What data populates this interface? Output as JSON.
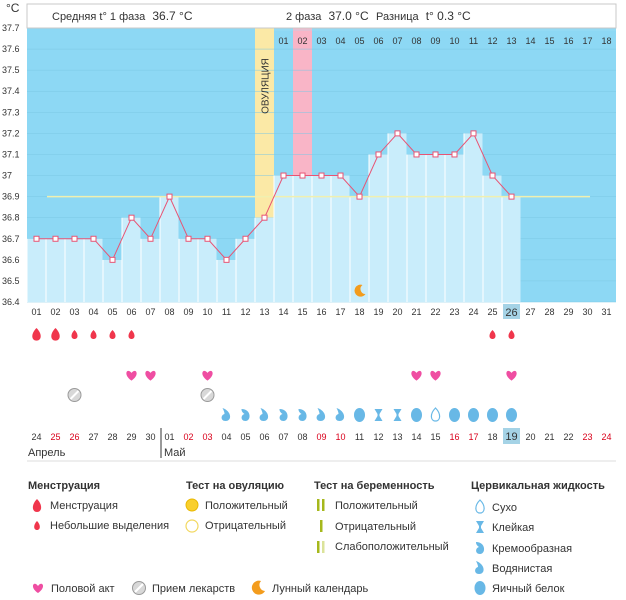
{
  "header": {
    "unit": "°C",
    "phase1_label": "Средняя t° 1 фаза",
    "phase1_value": "36.7 °C",
    "phase2_label": "2 фаза",
    "phase2_value": "37.0 °C",
    "diff_label": "Разница",
    "diff_value": "t° 0.3 °C",
    "ovulation_label": "ОВУЛЯЦИЯ"
  },
  "chart_data": {
    "type": "bar",
    "ylim": [
      36.4,
      37.7
    ],
    "y_ticks": [
      "36.4",
      "36.5",
      "36.6",
      "36.7",
      "36.8",
      "36.9",
      "37",
      "37.1",
      "37.2",
      "37.3",
      "37.4",
      "37.5",
      "37.6",
      "37.7"
    ],
    "coverline": 36.9,
    "ovulation_day": 13,
    "predicted_period_day": 15,
    "today_day": 26,
    "cycle_days": [
      1,
      2,
      3,
      4,
      5,
      6,
      7,
      8,
      9,
      10,
      11,
      12,
      13,
      14,
      15,
      16,
      17,
      18,
      19,
      20,
      21,
      22,
      23,
      24,
      25,
      26,
      27,
      28,
      29,
      30,
      31
    ],
    "values": [
      36.7,
      36.7,
      36.7,
      36.7,
      36.6,
      36.8,
      36.7,
      36.9,
      36.7,
      36.7,
      36.6,
      36.7,
      36.8,
      37.0,
      37.0,
      37.0,
      37.0,
      36.9,
      37.1,
      37.2,
      37.1,
      37.1,
      37.1,
      37.2,
      37.0,
      36.9
    ],
    "top_day_labels": [
      "01",
      "02",
      "03",
      "04",
      "05",
      "06",
      "07",
      "08",
      "09",
      "10",
      "11",
      "12",
      "13",
      "14",
      "15",
      "16",
      "17",
      "18"
    ],
    "bottom_day_labels": [
      "01",
      "02",
      "03",
      "04",
      "05",
      "06",
      "07",
      "08",
      "09",
      "10",
      "11",
      "12",
      "13",
      "14",
      "15",
      "16",
      "17",
      "18",
      "19",
      "20",
      "21",
      "22",
      "23",
      "24",
      "25",
      "26",
      "27",
      "28",
      "29",
      "30",
      "31"
    ],
    "date_labels": [
      "24",
      "25",
      "26",
      "27",
      "28",
      "29",
      "30",
      "01",
      "02",
      "03",
      "04",
      "05",
      "06",
      "07",
      "08",
      "09",
      "10",
      "11",
      "12",
      "13",
      "14",
      "15",
      "16",
      "17",
      "18",
      "19",
      "20",
      "21",
      "22",
      "23",
      "24"
    ],
    "red_dates": [
      "25",
      "26",
      "02",
      "03",
      "09",
      "10",
      "16",
      "17",
      "23",
      "24"
    ],
    "months": [
      "Апрель",
      "Май"
    ],
    "menstruation_heavy_days": [
      1,
      2
    ],
    "menstruation_light_days": [
      3,
      4,
      5,
      6,
      25,
      26
    ],
    "intercourse_days": [
      6,
      7,
      10,
      21,
      22,
      26
    ],
    "medication_days": [
      3,
      10
    ],
    "moon_day": 18,
    "cervical_fluid": [
      {
        "day": 11,
        "kind": "watery"
      },
      {
        "day": 12,
        "kind": "creamy"
      },
      {
        "day": 13,
        "kind": "watery"
      },
      {
        "day": 14,
        "kind": "creamy"
      },
      {
        "day": 15,
        "kind": "creamy"
      },
      {
        "day": 16,
        "kind": "watery"
      },
      {
        "day": 17,
        "kind": "watery"
      },
      {
        "day": 18,
        "kind": "eggwhite"
      },
      {
        "day": 19,
        "kind": "sticky"
      },
      {
        "day": 20,
        "kind": "sticky"
      },
      {
        "day": 21,
        "kind": "eggwhite"
      },
      {
        "day": 22,
        "kind": "dry"
      },
      {
        "day": 23,
        "kind": "eggwhite"
      },
      {
        "day": 24,
        "kind": "eggwhite"
      },
      {
        "day": 25,
        "kind": "eggwhite"
      },
      {
        "day": 26,
        "kind": "eggwhite"
      }
    ]
  },
  "colors": {
    "sky": "#8dd8f4",
    "bar": "#c9edfb",
    "bar_dark": "#a5cfe2",
    "ovulation": "#fbe9a6",
    "period": "#f9b5c7",
    "today": "#a5d3e6",
    "line": "#e85474",
    "coverline": "#f0f0b0",
    "drop": "#f0364c",
    "heart": "#ef4ea2",
    "fluid": "#68b8e6",
    "moon": "#f39c1d",
    "pill": "#9a9a9a"
  },
  "legend": {
    "menstruation": {
      "title": "Менструация",
      "items": [
        "Менструация",
        "Небольшие выделения"
      ]
    },
    "ovulation_test": {
      "title": "Тест на овуляцию",
      "items": [
        "Положительный",
        "Отрицательный"
      ]
    },
    "pregnancy_test": {
      "title": "Тест на беременность",
      "items": [
        "Положительный",
        "Отрицательный",
        "Слабоположительный"
      ]
    },
    "cervical": {
      "title": "Цервикальная жидкость",
      "items": [
        "Сухо",
        "Клейкая",
        "Кремообразная",
        "Водянистая",
        "Яичный белок"
      ]
    },
    "bottom": [
      "Половой акт",
      "Прием лекарств",
      "Лунный календарь"
    ]
  }
}
